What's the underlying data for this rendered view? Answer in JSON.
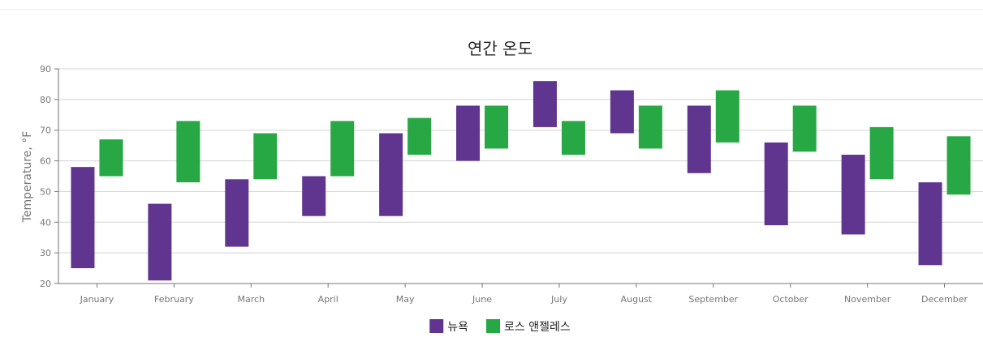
{
  "chart_data": {
    "type": "bar",
    "subtype": "range-bar",
    "title": "연간 온도",
    "xlabel": "",
    "ylabel": "Temperature, °F",
    "ylim": [
      20,
      90
    ],
    "yticks": [
      20,
      30,
      40,
      50,
      60,
      70,
      80,
      90
    ],
    "grid": true,
    "legend_position": "bottom",
    "categories": [
      "January",
      "February",
      "March",
      "April",
      "May",
      "June",
      "July",
      "August",
      "September",
      "October",
      "November",
      "December"
    ],
    "series": [
      {
        "name": "뉴욕",
        "color": "#5f3590",
        "low": [
          25,
          21,
          32,
          42,
          42,
          60,
          71,
          69,
          56,
          39,
          36,
          26
        ],
        "high": [
          58,
          46,
          54,
          55,
          69,
          78,
          86,
          83,
          78,
          66,
          62,
          53
        ]
      },
      {
        "name": "로스 앤젤레스",
        "color": "#27a844",
        "low": [
          55,
          53,
          54,
          55,
          62,
          64,
          62,
          64,
          66,
          63,
          54,
          49
        ],
        "high": [
          67,
          73,
          69,
          73,
          74,
          78,
          73,
          78,
          83,
          78,
          71,
          68
        ]
      }
    ]
  }
}
